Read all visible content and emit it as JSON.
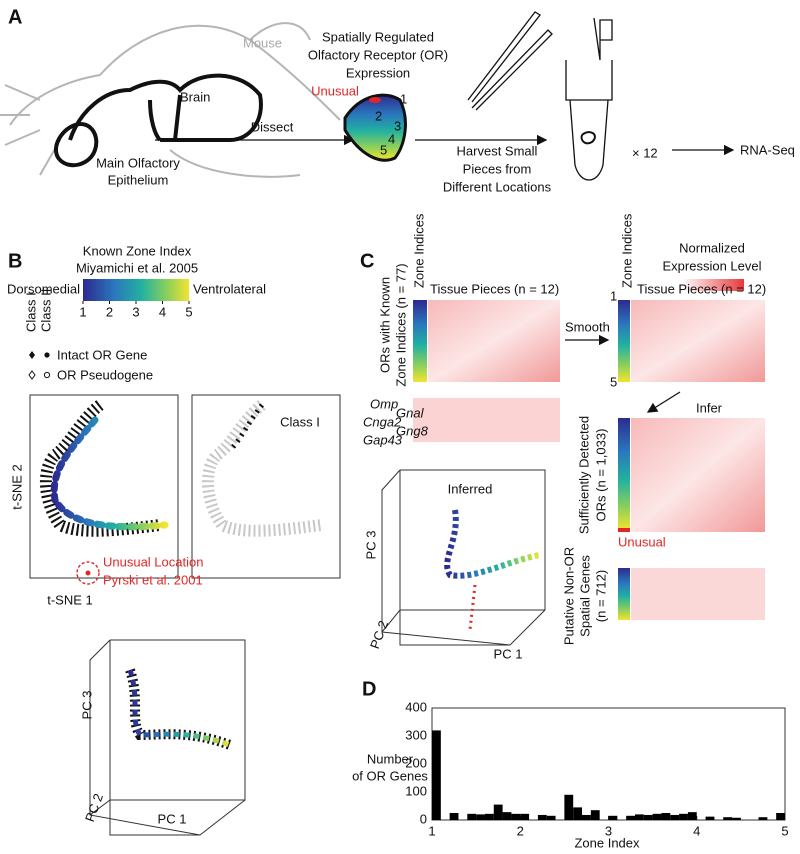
{
  "panel_a": {
    "letter": "A",
    "mouse": "Mouse",
    "brain": "Brain",
    "epithelium": [
      "Main Olfactory",
      "Epithelium"
    ],
    "dissect": "Dissect",
    "expression_title": [
      "Spatially Regulated",
      "Olfactory Receptor (OR)",
      "Expression"
    ],
    "unusual": "Unusual",
    "zones": [
      "1",
      "2",
      "3",
      "4",
      "5"
    ],
    "harvest": [
      "Harvest Small",
      "Pieces from",
      "Different Locations"
    ],
    "replicates": "× 12",
    "rna_seq": "RNA-Seq"
  },
  "panel_b": {
    "letter": "B",
    "colorbar_title": [
      "Known Zone Index",
      "Miyamichi et al. 2005"
    ],
    "left_end": "Dorsomedial",
    "right_end": "Ventrolateral",
    "colorbar_lim": [
      1,
      5
    ],
    "colorbar_ticks": [
      1,
      2,
      3,
      4,
      5
    ],
    "class_headers": [
      "Class I",
      "Class II"
    ],
    "legend": [
      "Intact OR Gene",
      "OR Pseudogene"
    ],
    "tsne_y": "t-SNE 2",
    "tsne_x": "t-SNE 1",
    "class_i_panel": "Class I",
    "unusual_location": [
      "Unusual Location",
      "Pyrski et al. 2001"
    ],
    "pca_axes": [
      "PC 3",
      "PC 2",
      "PC 1"
    ]
  },
  "panel_c": {
    "letter": "C",
    "zone_indices_left": "Zone Indices",
    "tissue_pieces_left": "Tissue Pieces (n = 12)",
    "known_label": [
      "ORs with Known",
      "Zone Indices (n = 77)"
    ],
    "marker_genes": [
      "Omp",
      "Cnga2",
      "Gap43",
      "Gnal",
      "Gng8"
    ],
    "smooth": "Smooth",
    "legend_title": [
      "Normalized",
      "Expression Level"
    ],
    "zone_indices_right": "Zone Indices",
    "tissue_pieces_right": "Tissue Pieces (n = 12)",
    "zone_axis": [
      "1",
      "5"
    ],
    "infer": "Infer",
    "detected_label": [
      "Sufficiently Detected",
      "ORs (n = 1,033)"
    ],
    "unusual": "Unusual",
    "non_or_label": [
      "Putative Non-OR",
      "Spatial Genes",
      "(n = 712)"
    ],
    "inferred": "Inferred",
    "pca_axes": [
      "PC 3",
      "PC 2",
      "PC 1"
    ]
  },
  "panel_d": {
    "letter": "D",
    "chart_data": {
      "type": "histogram",
      "ylabel": [
        "Number",
        "of OR Genes"
      ],
      "xlabel": "Zone Index",
      "color": "#000000",
      "bins": [
        1.0,
        1.1,
        1.2,
        1.3,
        1.4,
        1.5,
        1.6,
        1.7,
        1.8,
        1.9,
        2.0,
        2.1,
        2.2,
        2.3,
        2.4,
        2.5,
        2.6,
        2.7,
        2.8,
        2.9,
        3.0,
        3.1,
        3.2,
        3.3,
        3.4,
        3.5,
        3.6,
        3.7,
        3.8,
        3.9,
        4.0,
        4.1,
        4.2,
        4.3,
        4.4,
        4.5,
        4.6,
        4.7,
        4.8,
        4.9,
        5.0
      ],
      "counts": [
        320,
        0,
        25,
        0,
        22,
        20,
        22,
        55,
        28,
        22,
        22,
        0,
        18,
        15,
        0,
        90,
        45,
        18,
        35,
        0,
        15,
        0,
        15,
        20,
        18,
        22,
        25,
        18,
        22,
        28,
        0,
        12,
        0,
        10,
        8,
        0,
        0,
        10,
        0,
        25
      ],
      "xlim": [
        1,
        5
      ],
      "ylim": [
        0,
        400
      ],
      "xticks": [
        1,
        2,
        3,
        4,
        5
      ],
      "yticks": [
        0,
        100,
        200,
        300,
        400
      ]
    }
  }
}
